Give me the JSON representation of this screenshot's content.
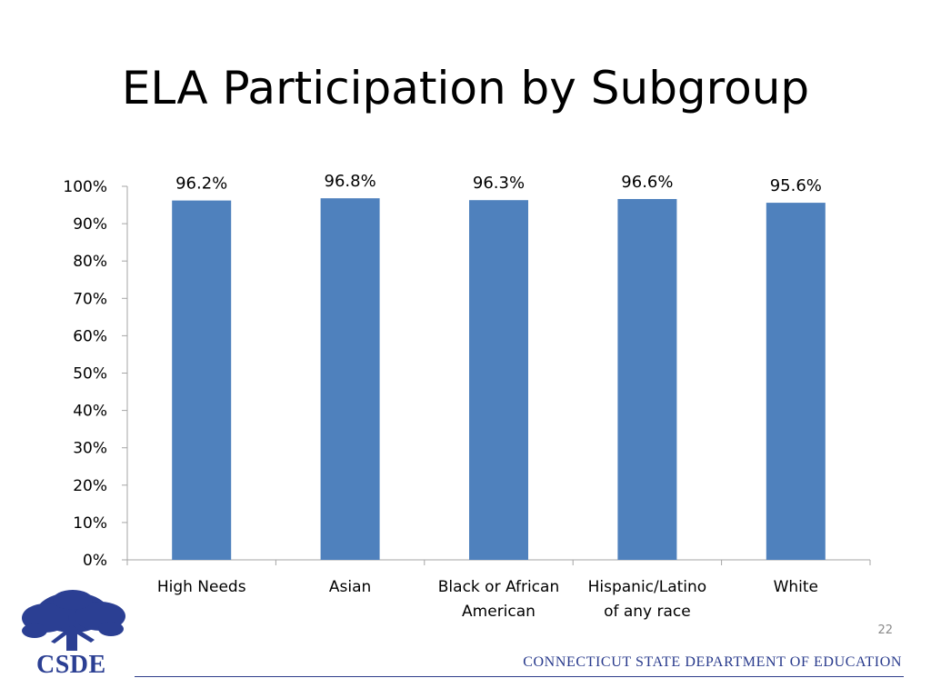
{
  "slide": {
    "title": "ELA Participation by Subgroup",
    "page_number": "22",
    "footer": "CONNECTICUT STATE DEPARTMENT OF EDUCATION",
    "logo_text": "CSDE"
  },
  "colors": {
    "bar": "#4f81bd",
    "axis": "#a6a6a6",
    "footer": "#283a8c"
  },
  "chart_data": {
    "type": "bar",
    "categories": [
      [
        "High Needs"
      ],
      [
        "Asian"
      ],
      [
        "Black or African",
        "American"
      ],
      [
        "Hispanic/Latino",
        "of any race"
      ],
      [
        "White"
      ]
    ],
    "values": [
      96.2,
      96.8,
      96.3,
      96.6,
      95.6
    ],
    "data_labels": [
      "96.2%",
      "96.8%",
      "96.3%",
      "96.6%",
      "95.6%"
    ],
    "y_ticks": [
      "0%",
      "10%",
      "20%",
      "30%",
      "40%",
      "50%",
      "60%",
      "70%",
      "80%",
      "90%",
      "100%"
    ],
    "ylim": [
      0,
      100
    ],
    "grid": false,
    "legend": "none"
  }
}
